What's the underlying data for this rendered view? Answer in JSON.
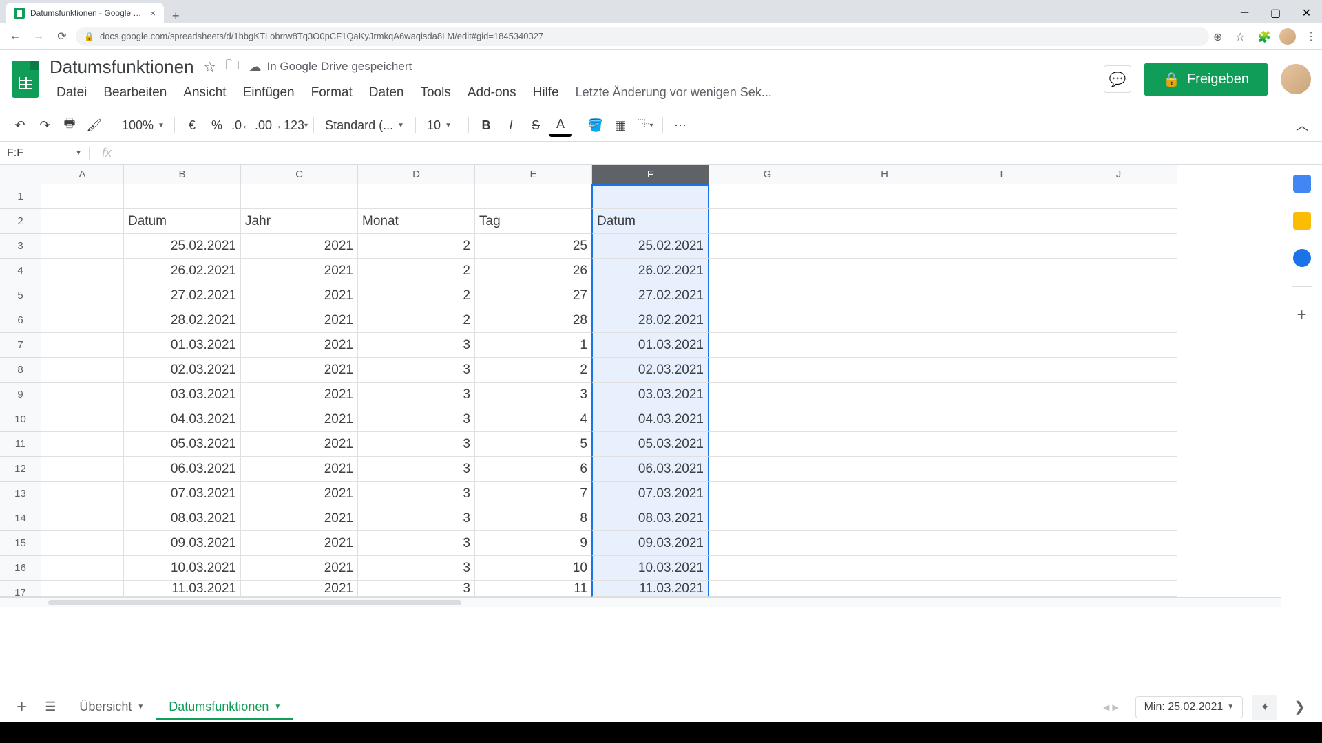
{
  "browser": {
    "tab_title": "Datumsfunktionen - Google Tab",
    "url": "docs.google.com/spreadsheets/d/1hbgKTLobrrw8Tq3O0pCF1QaKyJrmkqA6waqisda8LM/edit#gid=1845340327"
  },
  "doc": {
    "title": "Datumsfunktionen",
    "save_status": "In Google Drive gespeichert",
    "last_edit": "Letzte Änderung vor wenigen Sek..."
  },
  "menus": [
    "Datei",
    "Bearbeiten",
    "Ansicht",
    "Einfügen",
    "Format",
    "Daten",
    "Tools",
    "Add-ons",
    "Hilfe"
  ],
  "toolbar": {
    "zoom": "100%",
    "currency": "€",
    "percent": "%",
    "dec_dec": ".0",
    "inc_dec": ".00",
    "format_num": "123",
    "font": "Standard (...",
    "size": "10"
  },
  "share_label": "Freigeben",
  "name_box": "F:F",
  "columns": [
    "A",
    "B",
    "C",
    "D",
    "E",
    "F",
    "G",
    "H",
    "I",
    "J"
  ],
  "selected_col": "F",
  "headers": {
    "B": "Datum",
    "C": "Jahr",
    "D": "Monat",
    "E": "Tag",
    "F": "Datum"
  },
  "rows": [
    {
      "n": 1
    },
    {
      "n": 2,
      "type": "header"
    },
    {
      "n": 3,
      "B": "25.02.2021",
      "C": "2021",
      "D": "2",
      "E": "25",
      "F": "25.02.2021"
    },
    {
      "n": 4,
      "B": "26.02.2021",
      "C": "2021",
      "D": "2",
      "E": "26",
      "F": "26.02.2021"
    },
    {
      "n": 5,
      "B": "27.02.2021",
      "C": "2021",
      "D": "2",
      "E": "27",
      "F": "27.02.2021"
    },
    {
      "n": 6,
      "B": "28.02.2021",
      "C": "2021",
      "D": "2",
      "E": "28",
      "F": "28.02.2021"
    },
    {
      "n": 7,
      "B": "01.03.2021",
      "C": "2021",
      "D": "3",
      "E": "1",
      "F": "01.03.2021"
    },
    {
      "n": 8,
      "B": "02.03.2021",
      "C": "2021",
      "D": "3",
      "E": "2",
      "F": "02.03.2021"
    },
    {
      "n": 9,
      "B": "03.03.2021",
      "C": "2021",
      "D": "3",
      "E": "3",
      "F": "03.03.2021"
    },
    {
      "n": 10,
      "B": "04.03.2021",
      "C": "2021",
      "D": "3",
      "E": "4",
      "F": "04.03.2021"
    },
    {
      "n": 11,
      "B": "05.03.2021",
      "C": "2021",
      "D": "3",
      "E": "5",
      "F": "05.03.2021"
    },
    {
      "n": 12,
      "B": "06.03.2021",
      "C": "2021",
      "D": "3",
      "E": "6",
      "F": "06.03.2021"
    },
    {
      "n": 13,
      "B": "07.03.2021",
      "C": "2021",
      "D": "3",
      "E": "7",
      "F": "07.03.2021"
    },
    {
      "n": 14,
      "B": "08.03.2021",
      "C": "2021",
      "D": "3",
      "E": "8",
      "F": "08.03.2021"
    },
    {
      "n": 15,
      "B": "09.03.2021",
      "C": "2021",
      "D": "3",
      "E": "9",
      "F": "09.03.2021"
    },
    {
      "n": 16,
      "B": "10.03.2021",
      "C": "2021",
      "D": "3",
      "E": "10",
      "F": "10.03.2021"
    },
    {
      "n": 17,
      "B": "11.03.2021",
      "C": "2021",
      "D": "3",
      "E": "11",
      "F": "11.03.2021"
    }
  ],
  "sheets": [
    {
      "name": "Übersicht",
      "active": false
    },
    {
      "name": "Datumsfunktionen",
      "active": true
    }
  ],
  "explore": "Min: 25.02.2021"
}
